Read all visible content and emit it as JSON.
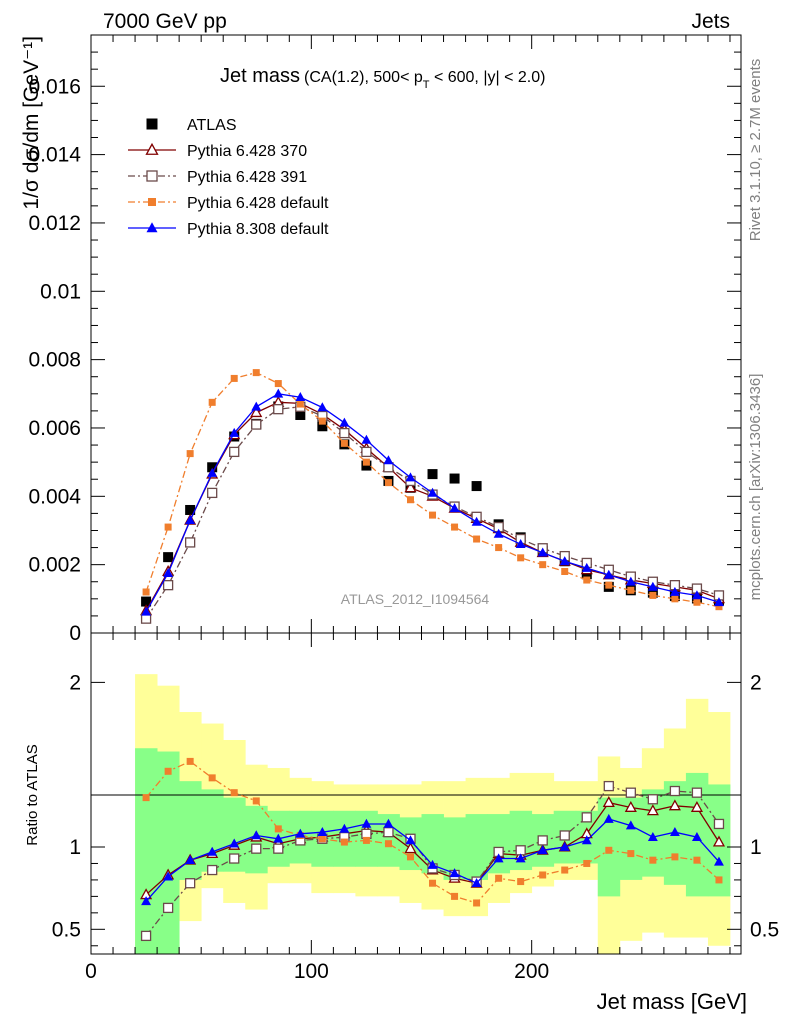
{
  "header": {
    "left": "7000 GeV pp",
    "right": "Jets"
  },
  "plot_title": {
    "main": "Jet mass",
    "detail_a": "(CA(1.2), 500< p",
    "detail_sub": "T",
    "detail_b": " < 600, |y| < 2.0)"
  },
  "side_labels": {
    "rivet": "Rivet 3.1.10, ≥ 2.7M events",
    "mcplots": "mcplots.cern.ch [arXiv:1306.3436]"
  },
  "analysis_id": "ATLAS_2012_I1094564",
  "chart_data": [
    {
      "type": "scatter",
      "panel": "main",
      "ylabel": "1/σ dσ/dm [GeV⁻¹]",
      "xlabel": "Jet mass [GeV]",
      "xlim": [
        0,
        295
      ],
      "ylim": [
        0,
        0.0175
      ],
      "y_ticks": [
        0,
        0.002,
        0.004,
        0.006,
        0.008,
        0.01,
        0.012,
        0.014,
        0.016
      ],
      "y_tick_labels": [
        "0",
        "0.002",
        "0.004",
        "0.006",
        "0.008",
        "0.01",
        "0.012",
        "0.014",
        "0.016"
      ],
      "x": [
        25,
        35,
        45,
        55,
        65,
        75,
        85,
        95,
        105,
        115,
        125,
        135,
        145,
        155,
        165,
        175,
        185,
        195,
        205,
        215,
        225,
        235,
        245,
        255,
        265,
        275,
        285
      ],
      "series": [
        {
          "name": "ATLAS",
          "color": "#000000",
          "marker": "square-filled",
          "line": "none",
          "values": [
            0.00092,
            0.00222,
            0.0036,
            0.00485,
            0.00575,
            0.00612,
            0.00663,
            0.00638,
            0.00605,
            0.00552,
            0.0049,
            0.00445,
            0.00425,
            0.00465,
            0.00452,
            0.0043,
            0.00318,
            0.0028,
            0.0024,
            0.0021,
            0.00172,
            0.00135,
            0.00125,
            0.00118,
            0.00108,
            0.00101,
            0.00095
          ]
        },
        {
          "name": "Pythia 6.428 370",
          "color": "#800000",
          "marker": "triangle-open",
          "line": "solid",
          "values": [
            0.00065,
            0.0018,
            0.0033,
            0.00465,
            0.0058,
            0.00645,
            0.00675,
            0.00672,
            0.0064,
            0.00595,
            0.0054,
            0.00485,
            0.00425,
            0.004,
            0.00365,
            0.00335,
            0.00305,
            0.00265,
            0.00235,
            0.0021,
            0.00185,
            0.0017,
            0.00155,
            0.00145,
            0.00135,
            0.00125,
            0.001
          ]
        },
        {
          "name": "Pythia 6.428 391",
          "color": "#6b4a4a",
          "marker": "square-open",
          "line": "dash-dot",
          "values": [
            0.00042,
            0.0014,
            0.00265,
            0.0041,
            0.0053,
            0.0061,
            0.00655,
            0.00662,
            0.00635,
            0.00585,
            0.0053,
            0.00485,
            0.00445,
            0.00405,
            0.0037,
            0.0034,
            0.0031,
            0.00275,
            0.00248,
            0.00225,
            0.00205,
            0.00185,
            0.00165,
            0.0015,
            0.0014,
            0.0013,
            0.0011
          ]
        },
        {
          "name": "Pythia 6.428 default",
          "color": "#f07e2d",
          "marker": "square-filled",
          "line": "dash-dot",
          "values": [
            0.0012,
            0.0031,
            0.00525,
            0.00675,
            0.00745,
            0.00762,
            0.0073,
            0.0067,
            0.0062,
            0.00555,
            0.005,
            0.0044,
            0.0039,
            0.00345,
            0.0031,
            0.00275,
            0.0025,
            0.0022,
            0.002,
            0.0018,
            0.00155,
            0.0014,
            0.00125,
            0.0011,
            0.001,
            0.0009,
            0.00077
          ]
        },
        {
          "name": "Pythia 8.308 default",
          "color": "#0000ff",
          "marker": "triangle-filled",
          "line": "solid",
          "values": [
            0.00062,
            0.00175,
            0.0033,
            0.00468,
            0.00585,
            0.00662,
            0.007,
            0.0069,
            0.0066,
            0.00615,
            0.00565,
            0.00505,
            0.00455,
            0.0041,
            0.00365,
            0.00325,
            0.0029,
            0.0026,
            0.00235,
            0.0021,
            0.0019,
            0.0017,
            0.0015,
            0.00135,
            0.0012,
            0.0011,
            0.0009
          ]
        }
      ]
    },
    {
      "type": "line",
      "panel": "ratio",
      "ylabel": "Ratio to ATLAS",
      "xlabel": "Jet mass [GeV]",
      "xlim": [
        0,
        295
      ],
      "ylim": [
        0.35,
        2.3
      ],
      "y_ticks": [
        0.5,
        1,
        2
      ],
      "y_tick_labels": [
        "0.5",
        "1",
        "2"
      ],
      "x_ticks": [
        0,
        100,
        200
      ],
      "x_tick_labels": [
        "0",
        "100",
        "200"
      ],
      "x": [
        25,
        35,
        45,
        55,
        65,
        75,
        85,
        95,
        105,
        115,
        125,
        135,
        145,
        155,
        165,
        175,
        185,
        195,
        205,
        215,
        225,
        235,
        245,
        255,
        265,
        275,
        285
      ],
      "bands": {
        "bin_edges": [
          20,
          30,
          40,
          50,
          60,
          70,
          80,
          90,
          100,
          110,
          120,
          130,
          140,
          150,
          160,
          170,
          180,
          190,
          200,
          210,
          220,
          230,
          240,
          250,
          260,
          270,
          280,
          290
        ],
        "yellow_colour": "#ffff99",
        "green_colour": "#88ff88",
        "yellow_low": [
          0.35,
          0.35,
          0.55,
          0.75,
          0.66,
          0.62,
          0.78,
          0.78,
          0.72,
          0.72,
          0.7,
          0.7,
          0.66,
          0.62,
          0.58,
          0.58,
          0.66,
          0.72,
          0.76,
          0.8,
          0.8,
          0.35,
          0.43,
          0.48,
          0.45,
          0.45,
          0.4
        ],
        "yellow_high": [
          2.05,
          1.98,
          1.82,
          1.75,
          1.65,
          1.5,
          1.48,
          1.42,
          1.4,
          1.38,
          1.38,
          1.38,
          1.38,
          1.4,
          1.4,
          1.42,
          1.42,
          1.45,
          1.45,
          1.4,
          1.4,
          1.55,
          1.48,
          1.6,
          1.72,
          1.9,
          1.82
        ],
        "green_low": [
          0.35,
          0.35,
          0.8,
          0.85,
          0.85,
          0.84,
          0.88,
          0.9,
          0.88,
          0.88,
          0.88,
          0.88,
          0.86,
          0.84,
          0.8,
          0.8,
          0.84,
          0.86,
          0.88,
          0.9,
          0.9,
          0.7,
          0.8,
          0.82,
          0.77,
          0.7,
          0.7
        ],
        "green_high": [
          1.6,
          1.58,
          1.4,
          1.35,
          1.3,
          1.25,
          1.22,
          1.22,
          1.22,
          1.22,
          1.22,
          1.2,
          1.18,
          1.2,
          1.18,
          1.2,
          1.2,
          1.22,
          1.2,
          1.22,
          1.22,
          1.3,
          1.3,
          1.35,
          1.4,
          1.45,
          1.38
        ]
      },
      "series": [
        {
          "name": "Pythia 6.428 370",
          "color": "#800000",
          "marker": "triangle-open",
          "line": "solid",
          "values": [
            0.71,
            0.83,
            0.92,
            0.96,
            1.01,
            1.06,
            1.02,
            1.05,
            1.06,
            1.08,
            1.1,
            1.09,
            0.99,
            0.86,
            0.81,
            0.78,
            0.96,
            0.95,
            0.98,
            1.0,
            1.08,
            1.27,
            1.24,
            1.22,
            1.25,
            1.24,
            1.03
          ]
        },
        {
          "name": "Pythia 6.428 391",
          "color": "#6b4a4a",
          "marker": "square-open",
          "line": "dash-dot",
          "values": [
            0.46,
            0.63,
            0.78,
            0.86,
            0.93,
            0.99,
            0.99,
            1.04,
            1.05,
            1.06,
            1.08,
            1.09,
            1.05,
            0.87,
            0.83,
            0.79,
            0.97,
            0.98,
            1.04,
            1.07,
            1.18,
            1.37,
            1.33,
            1.29,
            1.34,
            1.33,
            1.14
          ]
        },
        {
          "name": "Pythia 6.428 default",
          "color": "#f07e2d",
          "marker": "square-filled",
          "line": "dash-dot",
          "values": [
            1.3,
            1.46,
            1.52,
            1.42,
            1.33,
            1.28,
            1.11,
            1.07,
            1.05,
            1.03,
            1.04,
            1.02,
            0.94,
            0.78,
            0.7,
            0.66,
            0.81,
            0.79,
            0.83,
            0.86,
            0.9,
            0.98,
            0.96,
            0.92,
            0.94,
            0.92,
            0.8
          ]
        },
        {
          "name": "Pythia 8.308 default",
          "color": "#0000ff",
          "marker": "triangle-filled",
          "line": "solid",
          "values": [
            0.67,
            0.82,
            0.92,
            0.97,
            1.02,
            1.07,
            1.05,
            1.08,
            1.09,
            1.11,
            1.14,
            1.14,
            1.04,
            0.89,
            0.84,
            0.78,
            0.93,
            0.93,
            0.98,
            1.0,
            1.04,
            1.17,
            1.13,
            1.06,
            1.09,
            1.06,
            0.91
          ]
        }
      ]
    }
  ]
}
